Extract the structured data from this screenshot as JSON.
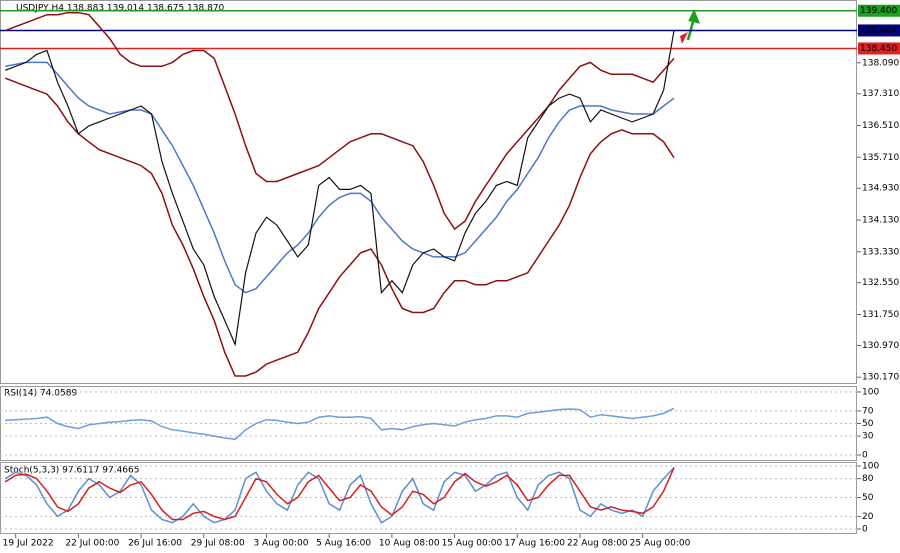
{
  "chart_data": [
    {
      "type": "line",
      "title": "USDJPY,H4 138.883 139.014 138.675 138.870",
      "categories": [
        null,
        "19 Jul 2022",
        null,
        null,
        null,
        null,
        null,
        "22 Jul 00:00",
        null,
        null,
        null,
        null,
        null,
        "26 Jul 16:00",
        null,
        null,
        null,
        null,
        null,
        "29 Jul 08:00",
        null,
        null,
        null,
        null,
        null,
        "3 Aug 00:00",
        null,
        null,
        null,
        null,
        null,
        "5 Aug 16:00",
        null,
        null,
        null,
        null,
        null,
        "10 Aug 08:00",
        null,
        null,
        null,
        null,
        null,
        "15 Aug 00:00",
        null,
        null,
        null,
        null,
        null,
        "17 Aug 16:00",
        null,
        null,
        null,
        null,
        null,
        "22 Aug 08:00",
        null,
        null,
        null,
        null,
        null,
        "25 Aug 00:00",
        null,
        null,
        null
      ],
      "series": [
        {
          "color": "#8b1010",
          "values": [
            138.9,
            139.0,
            139.1,
            139.2,
            139.3,
            139.3,
            139.35,
            139.35,
            139.3,
            139.0,
            138.7,
            138.3,
            138.1,
            138.0,
            138.0,
            138.0,
            138.1,
            138.3,
            138.4,
            138.4,
            138.2,
            137.5,
            136.8,
            136.0,
            135.3,
            135.1,
            135.1,
            135.2,
            135.3,
            135.4,
            135.5,
            135.7,
            135.9,
            136.1,
            136.2,
            136.3,
            136.3,
            136.2,
            136.1,
            136.0,
            135.6,
            135.0,
            134.3,
            133.9,
            134.1,
            134.6,
            135.0,
            135.4,
            135.8,
            136.1,
            136.4,
            136.7,
            137.0,
            137.4,
            137.7,
            138.0,
            138.1,
            137.9,
            137.8,
            137.8,
            137.8,
            137.7,
            137.6,
            137.9,
            138.2
          ]
        },
        {
          "color": "#8b1010",
          "values": [
            137.7,
            137.6,
            137.5,
            137.4,
            137.3,
            137.0,
            136.6,
            136.3,
            136.1,
            135.9,
            135.8,
            135.7,
            135.6,
            135.5,
            135.3,
            134.8,
            134.0,
            133.5,
            132.9,
            132.2,
            131.6,
            130.8,
            130.2,
            130.2,
            130.3,
            130.5,
            130.6,
            130.7,
            130.8,
            131.3,
            131.9,
            132.3,
            132.7,
            133.0,
            133.3,
            133.4,
            133.0,
            132.4,
            131.9,
            131.8,
            131.8,
            131.9,
            132.3,
            132.6,
            132.6,
            132.5,
            132.5,
            132.6,
            132.6,
            132.7,
            132.8,
            133.2,
            133.6,
            134.0,
            134.5,
            135.2,
            135.8,
            136.1,
            136.3,
            136.4,
            136.3,
            136.3,
            136.3,
            136.1,
            135.7
          ]
        },
        {
          "color": "#4a78c8",
          "values": [
            138.0,
            138.05,
            138.1,
            138.1,
            138.1,
            137.8,
            137.5,
            137.2,
            137.0,
            136.9,
            136.8,
            136.85,
            136.9,
            136.9,
            136.8,
            136.4,
            136.0,
            135.5,
            135.0,
            134.4,
            133.8,
            133.1,
            132.5,
            132.3,
            132.4,
            132.7,
            133.0,
            133.3,
            133.5,
            133.8,
            134.2,
            134.5,
            134.7,
            134.8,
            134.8,
            134.6,
            134.2,
            133.9,
            133.6,
            133.4,
            133.3,
            133.2,
            133.2,
            133.2,
            133.3,
            133.6,
            133.9,
            134.2,
            134.6,
            134.9,
            135.3,
            135.7,
            136.2,
            136.6,
            136.9,
            137.0,
            137.0,
            137.0,
            136.9,
            136.85,
            136.8,
            136.8,
            136.8,
            137.0,
            137.2
          ]
        },
        {
          "color": "#111111",
          "values": [
            137.9,
            138.0,
            138.1,
            138.3,
            138.4,
            137.6,
            137.0,
            136.3,
            136.5,
            136.6,
            136.7,
            136.8,
            136.9,
            137.0,
            136.8,
            135.6,
            134.8,
            134.1,
            133.4,
            133.0,
            132.2,
            131.6,
            131.0,
            132.8,
            133.8,
            134.2,
            134.0,
            133.6,
            133.2,
            133.5,
            135.0,
            135.2,
            134.9,
            134.9,
            135.0,
            134.8,
            132.3,
            132.6,
            132.3,
            133.0,
            133.3,
            133.4,
            133.2,
            133.1,
            133.8,
            134.3,
            134.6,
            135.0,
            135.1,
            135.0,
            136.2,
            136.6,
            137.0,
            137.2,
            137.3,
            137.2,
            136.6,
            136.9,
            136.8,
            136.7,
            136.6,
            136.7,
            136.8,
            137.4,
            138.9
          ]
        }
      ],
      "levels": [
        {
          "value": 139.4,
          "label": "139.400",
          "color": "#1e9e1e"
        },
        {
          "value": 138.904,
          "label": "138.904",
          "color": "#000080"
        },
        {
          "value": 138.45,
          "label": "138.450",
          "color": "#e02020"
        }
      ],
      "ylim": [
        130.1,
        139.57
      ],
      "yticks": [
        {
          "value": 138.09,
          "label": "138.090"
        },
        {
          "value": 137.31,
          "label": "137.310"
        },
        {
          "value": 136.51,
          "label": "136.510"
        },
        {
          "value": 135.71,
          "label": "135.710"
        },
        {
          "value": 134.93,
          "label": "134.930"
        },
        {
          "value": 134.13,
          "label": "134.130"
        },
        {
          "value": 133.33,
          "label": "133.330"
        },
        {
          "value": 132.55,
          "label": "132.550"
        },
        {
          "value": 131.75,
          "label": "131.750"
        },
        {
          "value": 130.97,
          "label": "130.970"
        },
        {
          "value": 130.17,
          "label": "130.170"
        }
      ]
    },
    {
      "type": "line",
      "title": "RSI(14) 74.0589",
      "series": [
        {
          "color": "#6a9fd8",
          "values": [
            55,
            56,
            57,
            58,
            60,
            50,
            45,
            42,
            48,
            50,
            52,
            53,
            55,
            56,
            54,
            45,
            40,
            38,
            35,
            33,
            30,
            27,
            25,
            40,
            50,
            56,
            55,
            52,
            50,
            52,
            60,
            62,
            60,
            60,
            61,
            58,
            40,
            42,
            40,
            45,
            48,
            50,
            48,
            46,
            52,
            56,
            58,
            62,
            62,
            60,
            66,
            68,
            70,
            72,
            73,
            72,
            60,
            64,
            62,
            60,
            58,
            60,
            62,
            66,
            74.06
          ]
        }
      ],
      "ylim": [
        0,
        100
      ],
      "yticks": [
        100,
        70,
        50,
        30,
        0
      ]
    },
    {
      "type": "line",
      "title": "Stoch(5,3,3) 97.6117 97.4665",
      "series": [
        {
          "color": "#5a8fd0",
          "values": [
            80,
            90,
            85,
            70,
            40,
            20,
            30,
            60,
            80,
            70,
            50,
            60,
            85,
            70,
            30,
            15,
            10,
            20,
            40,
            20,
            10,
            15,
            30,
            80,
            90,
            60,
            40,
            30,
            70,
            90,
            80,
            40,
            30,
            70,
            85,
            40,
            10,
            20,
            60,
            80,
            40,
            30,
            75,
            90,
            85,
            60,
            70,
            85,
            90,
            50,
            30,
            70,
            85,
            90,
            80,
            30,
            20,
            40,
            30,
            25,
            30,
            20,
            60,
            80,
            97.61
          ]
        },
        {
          "color": "#d42020",
          "values": [
            75,
            85,
            87,
            80,
            60,
            35,
            28,
            40,
            65,
            75,
            65,
            58,
            70,
            75,
            55,
            30,
            15,
            15,
            25,
            28,
            20,
            15,
            20,
            50,
            80,
            75,
            55,
            40,
            50,
            75,
            85,
            65,
            45,
            50,
            70,
            60,
            35,
            22,
            35,
            60,
            55,
            40,
            50,
            75,
            88,
            75,
            68,
            75,
            85,
            70,
            45,
            50,
            70,
            85,
            85,
            60,
            35,
            30,
            35,
            30,
            28,
            25,
            35,
            60,
            97.47
          ]
        }
      ],
      "ylim": [
        0,
        100
      ],
      "yticks": [
        100,
        80,
        50,
        20,
        0
      ]
    }
  ]
}
